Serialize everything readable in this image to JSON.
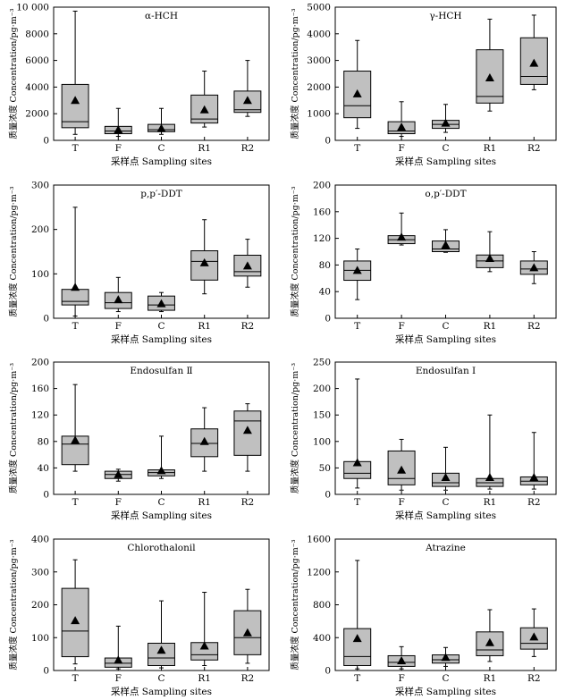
{
  "chart_data": [
    {
      "type": "box",
      "title": "α-HCH",
      "xlabel": "采样点 Sampling sites",
      "ylabel": "质量浓度 Concentration/pg·m⁻³",
      "categories": [
        "T",
        "F",
        "C",
        "R1",
        "R2"
      ],
      "ylim": [
        0,
        10000
      ],
      "yticks": [
        0,
        2000,
        4000,
        6000,
        8000,
        10000
      ],
      "ytick_labels": [
        "0",
        "2000",
        "4000",
        "6000",
        "8000",
        "10 000"
      ],
      "boxes": [
        {
          "min": 450,
          "q1": 950,
          "median": 1400,
          "q3": 4200,
          "max": 9700,
          "mean": 3000
        },
        {
          "min": 300,
          "q1": 500,
          "median": 700,
          "q3": 1050,
          "max": 2400,
          "mean": 800
        },
        {
          "min": 450,
          "q1": 650,
          "median": 800,
          "q3": 1200,
          "max": 2400,
          "mean": 900
        },
        {
          "min": 1000,
          "q1": 1300,
          "median": 1600,
          "q3": 3400,
          "max": 5200,
          "mean": 2300
        },
        {
          "min": 1800,
          "q1": 2100,
          "median": 2300,
          "q3": 3700,
          "max": 6000,
          "mean": 3000
        }
      ]
    },
    {
      "type": "box",
      "title": "γ-HCH",
      "xlabel": "采样点 Sampling sites",
      "ylabel": "质量浓度 Concentration/pg·m⁻³",
      "categories": [
        "T",
        "F",
        "C",
        "R1",
        "R2"
      ],
      "ylim": [
        0,
        5000
      ],
      "yticks": [
        0,
        1000,
        2000,
        3000,
        4000,
        5000
      ],
      "ytick_labels": [
        "0",
        "1000",
        "2000",
        "3000",
        "4000",
        "5000"
      ],
      "boxes": [
        {
          "min": 450,
          "q1": 850,
          "median": 1300,
          "q3": 2600,
          "max": 3750,
          "mean": 1750
        },
        {
          "min": 150,
          "q1": 250,
          "median": 350,
          "q3": 700,
          "max": 1450,
          "mean": 500
        },
        {
          "min": 300,
          "q1": 450,
          "median": 600,
          "q3": 750,
          "max": 1350,
          "mean": 650
        },
        {
          "min": 1100,
          "q1": 1400,
          "median": 1650,
          "q3": 3400,
          "max": 4550,
          "mean": 2350
        },
        {
          "min": 1900,
          "q1": 2100,
          "median": 2400,
          "q3": 3850,
          "max": 4700,
          "mean": 2900
        }
      ]
    },
    {
      "type": "box",
      "title": "p,p′-DDT",
      "xlabel": "采样点 Sampling sites",
      "ylabel": "质量浓度 Concentration/pg·m⁻³",
      "categories": [
        "T",
        "F",
        "C",
        "R1",
        "R2"
      ],
      "ylim": [
        0,
        300
      ],
      "yticks": [
        0,
        100,
        200,
        300
      ],
      "ytick_labels": [
        "0",
        "100",
        "200",
        "300"
      ],
      "boxes": [
        {
          "min": 5,
          "q1": 30,
          "median": 38,
          "q3": 65,
          "max": 250,
          "mean": 70
        },
        {
          "min": 15,
          "q1": 22,
          "median": 35,
          "q3": 58,
          "max": 92,
          "mean": 42
        },
        {
          "min": 15,
          "q1": 18,
          "median": 30,
          "q3": 50,
          "max": 58,
          "mean": 33
        },
        {
          "min": 55,
          "q1": 86,
          "median": 128,
          "q3": 152,
          "max": 222,
          "mean": 125
        },
        {
          "min": 70,
          "q1": 95,
          "median": 105,
          "q3": 142,
          "max": 178,
          "mean": 118
        }
      ]
    },
    {
      "type": "box",
      "title": "o,p′-DDT",
      "xlabel": "采样点 Sampling sites",
      "ylabel": "质量浓度 Concentration/pg·m⁻³",
      "categories": [
        "T",
        "F",
        "C",
        "R1",
        "R2"
      ],
      "ylim": [
        0,
        200
      ],
      "yticks": [
        0,
        40,
        80,
        120,
        160,
        200
      ],
      "ytick_labels": [
        "0",
        "40",
        "80",
        "120",
        "160",
        "200"
      ],
      "boxes": [
        {
          "min": 28,
          "q1": 57,
          "median": 72,
          "q3": 86,
          "max": 104,
          "mean": 72
        },
        {
          "min": 110,
          "q1": 112,
          "median": 118,
          "q3": 124,
          "max": 158,
          "mean": 122
        },
        {
          "min": 99,
          "q1": 100,
          "median": 104,
          "q3": 116,
          "max": 133,
          "mean": 110
        },
        {
          "min": 70,
          "q1": 76,
          "median": 86,
          "q3": 95,
          "max": 130,
          "mean": 90
        },
        {
          "min": 52,
          "q1": 66,
          "median": 74,
          "q3": 86,
          "max": 100,
          "mean": 76
        }
      ]
    },
    {
      "type": "box",
      "title": "Endosulfan Ⅱ",
      "xlabel": "采样点 Sampling sites",
      "ylabel": "质量浓度 Concentration/pg·m⁻³",
      "categories": [
        "T",
        "F",
        "C",
        "R1",
        "R2"
      ],
      "ylim": [
        0,
        200
      ],
      "yticks": [
        0,
        40,
        80,
        120,
        160,
        200
      ],
      "ytick_labels": [
        "0",
        "40",
        "80",
        "120",
        "160",
        "200"
      ],
      "boxes": [
        {
          "min": 35,
          "q1": 45,
          "median": 76,
          "q3": 88,
          "max": 166,
          "mean": 82
        },
        {
          "min": 20,
          "q1": 24,
          "median": 30,
          "q3": 35,
          "max": 38,
          "mean": 30
        },
        {
          "min": 24,
          "q1": 28,
          "median": 33,
          "q3": 37,
          "max": 88,
          "mean": 36
        },
        {
          "min": 35,
          "q1": 57,
          "median": 77,
          "q3": 99,
          "max": 131,
          "mean": 80
        },
        {
          "min": 35,
          "q1": 59,
          "median": 111,
          "q3": 126,
          "max": 137,
          "mean": 97
        }
      ]
    },
    {
      "type": "box",
      "title": "Endosulfan Ⅰ",
      "xlabel": "采样点 Sampling sites",
      "ylabel": "质量浓度 Concentration/pg·m⁻³",
      "categories": [
        "T",
        "F",
        "C",
        "R1",
        "R2"
      ],
      "ylim": [
        0,
        250
      ],
      "yticks": [
        0,
        50,
        100,
        150,
        200,
        250
      ],
      "ytick_labels": [
        "0",
        "50",
        "100",
        "150",
        "200",
        "250"
      ],
      "boxes": [
        {
          "min": 12,
          "q1": 30,
          "median": 40,
          "q3": 62,
          "max": 218,
          "mean": 60
        },
        {
          "min": 8,
          "q1": 18,
          "median": 30,
          "q3": 82,
          "max": 104,
          "mean": 46
        },
        {
          "min": 8,
          "q1": 15,
          "median": 22,
          "q3": 40,
          "max": 89,
          "mean": 32
        },
        {
          "min": 10,
          "q1": 15,
          "median": 22,
          "q3": 30,
          "max": 150,
          "mean": 32
        },
        {
          "min": 10,
          "q1": 18,
          "median": 25,
          "q3": 33,
          "max": 117,
          "mean": 32
        }
      ]
    },
    {
      "type": "box",
      "title": "Chlorothalonil",
      "xlabel": "采样点 Sampling sites",
      "ylabel": "质量浓度 Concentration/pg·m⁻³",
      "categories": [
        "T",
        "F",
        "C",
        "R1",
        "R2"
      ],
      "ylim": [
        0,
        400
      ],
      "yticks": [
        0,
        100,
        200,
        300,
        400
      ],
      "ytick_labels": [
        "0",
        "100",
        "200",
        "300",
        "400"
      ],
      "boxes": [
        {
          "min": 20,
          "q1": 42,
          "median": 120,
          "q3": 250,
          "max": 337,
          "mean": 152
        },
        {
          "min": 5,
          "q1": 10,
          "median": 22,
          "q3": 38,
          "max": 135,
          "mean": 32
        },
        {
          "min": 8,
          "q1": 15,
          "median": 38,
          "q3": 83,
          "max": 212,
          "mean": 62
        },
        {
          "min": 15,
          "q1": 32,
          "median": 48,
          "q3": 85,
          "max": 238,
          "mean": 75
        },
        {
          "min": 22,
          "q1": 48,
          "median": 100,
          "q3": 182,
          "max": 247,
          "mean": 115
        }
      ]
    },
    {
      "type": "box",
      "title": "Atrazine",
      "xlabel": "采样点 Sampling sites",
      "ylabel": "质量浓度 Concentration/pg·m⁻³",
      "categories": [
        "T",
        "F",
        "C",
        "R1",
        "R2"
      ],
      "ylim": [
        0,
        1600
      ],
      "yticks": [
        0,
        400,
        800,
        1200,
        1600
      ],
      "ytick_labels": [
        "0",
        "400",
        "800",
        "1200",
        "1600"
      ],
      "boxes": [
        {
          "min": 20,
          "q1": 60,
          "median": 170,
          "q3": 510,
          "max": 1340,
          "mean": 390
        },
        {
          "min": 20,
          "q1": 50,
          "median": 100,
          "q3": 180,
          "max": 290,
          "mean": 120
        },
        {
          "min": 50,
          "q1": 90,
          "median": 130,
          "q3": 190,
          "max": 280,
          "mean": 160
        },
        {
          "min": 110,
          "q1": 180,
          "median": 250,
          "q3": 470,
          "max": 740,
          "mean": 340
        },
        {
          "min": 170,
          "q1": 260,
          "median": 330,
          "q3": 520,
          "max": 750,
          "mean": 410
        }
      ]
    }
  ],
  "style": {
    "box_fill": "#c0c0c0",
    "stroke": "#000000",
    "mean_marker": "triangle"
  }
}
